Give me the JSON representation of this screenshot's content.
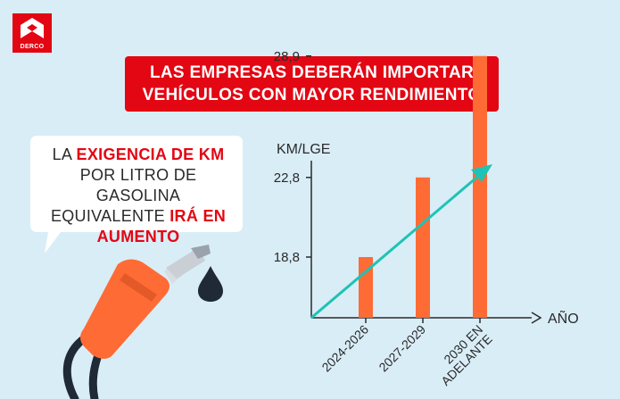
{
  "brand": {
    "logo_text": "DERCO"
  },
  "title": {
    "line1": "LAS EMPRESAS DEBERÁN IMPORTAR",
    "line2": "VEHÍCULOS CON MAYOR RENDIMIENTO"
  },
  "bubble": {
    "line1_a": "LA ",
    "line1_b": "EXIGENCIA DE KM",
    "line2": "POR LITRO DE GASOLINA",
    "line3_a": "EQUIVALENTE ",
    "line3_b": "IRÁ EN",
    "line4": "AUMENTO"
  },
  "icons": [
    "derco-logo",
    "fuel-nozzle-icon",
    "fuel-drop-icon",
    "trend-arrow-icon"
  ],
  "colors": {
    "accent": "#e30613",
    "bar": "#ff6b35",
    "arrow": "#1fc3b5",
    "background": "#d9edf7"
  },
  "chart_data": {
    "type": "bar",
    "ylabel": "KM/LGE",
    "xlabel": "AÑO",
    "categories": [
      "2024-2026",
      "2027-2029",
      "2030 EN ADELANTE"
    ],
    "category_lines": [
      [
        "2024-2026"
      ],
      [
        "2027-2029"
      ],
      [
        "2030 EN",
        "ADELANTE"
      ]
    ],
    "values": [
      18.8,
      22.8,
      28.9
    ],
    "yticks": [
      18.8,
      22.8,
      28.9
    ],
    "ytick_labels": [
      "18,8",
      "22,8",
      "28,9"
    ],
    "ylim": [
      15.75,
      30.9
    ],
    "grid": false,
    "legend": "none"
  }
}
